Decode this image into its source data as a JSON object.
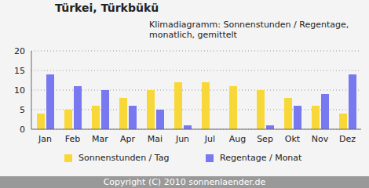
{
  "chart_data": {
    "type": "bar",
    "title": "Türkei, Türkbükü",
    "subtitle": "Klimadiagramm: Sonnenstunden / Regentage, monatlich, gemittelt",
    "annotations": [
      "Copyright (C) 2010 sonnenlaender.de"
    ],
    "categories": [
      "Jan",
      "Feb",
      "Mar",
      "Apr",
      "Mai",
      "Jun",
      "Jul",
      "Aug",
      "Sep",
      "Okt",
      "Nov",
      "Dez"
    ],
    "series": [
      {
        "name": "Sonnenstunden / Tag",
        "color": "#f8d838",
        "values": [
          4,
          5,
          6,
          8,
          10,
          12,
          12,
          11,
          10,
          8,
          6,
          4
        ]
      },
      {
        "name": "Regentage / Monat",
        "color": "#7878f0",
        "values": [
          14,
          11,
          10,
          6,
          5,
          1,
          0,
          0,
          1,
          6,
          9,
          14
        ]
      }
    ],
    "ylim": [
      0,
      20
    ],
    "yticks": [
      0,
      5,
      10,
      15,
      20
    ],
    "grid": true,
    "legend": "bottom"
  }
}
